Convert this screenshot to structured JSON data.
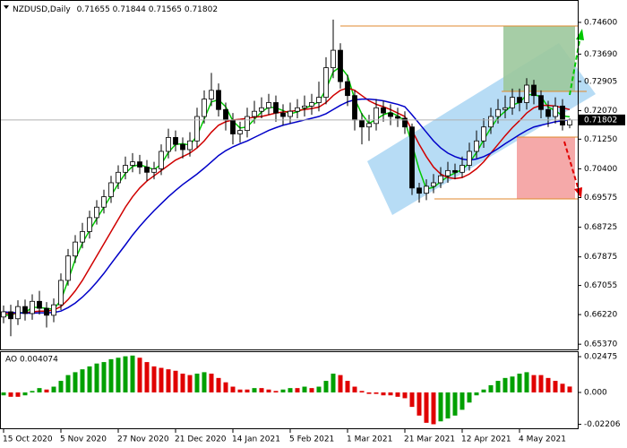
{
  "chart_data": [
    {
      "type": "candlestick",
      "title": "NZDUSD,Daily",
      "color": "#000000",
      "bull_fill": "#ffffff",
      "categories": [
        "15 Oct 2020",
        null,
        null,
        null,
        null,
        null,
        null,
        null,
        "5 Nov 2020",
        null,
        null,
        null,
        null,
        null,
        null,
        null,
        "27 Nov 2020",
        null,
        null,
        null,
        null,
        null,
        null,
        null,
        "21 Dec 2020",
        null,
        null,
        null,
        null,
        null,
        null,
        null,
        "14 Jan 2021",
        null,
        null,
        null,
        null,
        null,
        null,
        null,
        "5 Feb 2021",
        null,
        null,
        null,
        null,
        null,
        null,
        null,
        "1 Mar 2021",
        null,
        null,
        null,
        null,
        null,
        null,
        null,
        "21 Mar 2021",
        null,
        null,
        null,
        null,
        null,
        null,
        null,
        "12 Apr 2021",
        null,
        null,
        null,
        null,
        null,
        null,
        null,
        "4 May 2021",
        null,
        null,
        null,
        null,
        null,
        null,
        null
      ],
      "open": [
        0.6615,
        0.663,
        0.661,
        0.6645,
        0.6625,
        0.666,
        0.664,
        0.662,
        0.665,
        0.672,
        0.679,
        0.683,
        0.686,
        0.69,
        0.693,
        0.696,
        0.7,
        0.703,
        0.705,
        0.706,
        0.7045,
        0.703,
        0.704,
        0.709,
        0.713,
        0.711,
        0.7095,
        0.712,
        0.719,
        0.724,
        0.7265,
        0.721,
        0.718,
        0.714,
        0.715,
        0.719,
        0.7205,
        0.7215,
        0.723,
        0.72,
        0.719,
        0.7205,
        0.7215,
        0.722,
        0.723,
        0.7245,
        0.733,
        0.738,
        0.729,
        0.725,
        0.718,
        0.716,
        0.717,
        0.7215,
        0.72,
        0.719,
        0.7185,
        0.716,
        0.6985,
        0.697,
        0.699,
        0.7,
        0.702,
        0.7035,
        0.703,
        0.705,
        0.709,
        0.712,
        0.716,
        0.719,
        0.721,
        0.7215,
        0.7245,
        0.723,
        0.728,
        0.725,
        0.721,
        0.719,
        0.722,
        0.71655
      ],
      "high": [
        0.6648,
        0.665,
        0.6663,
        0.6665,
        0.668,
        0.669,
        0.6658,
        0.6668,
        0.674,
        0.681,
        0.685,
        0.6885,
        0.692,
        0.695,
        0.698,
        0.702,
        0.705,
        0.7075,
        0.7085,
        0.708,
        0.7065,
        0.706,
        0.711,
        0.7155,
        0.715,
        0.713,
        0.7145,
        0.7215,
        0.7265,
        0.7315,
        0.7285,
        0.723,
        0.72,
        0.7175,
        0.7215,
        0.7235,
        0.7245,
        0.7255,
        0.725,
        0.7225,
        0.723,
        0.724,
        0.725,
        0.7255,
        0.729,
        0.736,
        0.7468,
        0.74,
        0.731,
        0.7265,
        0.72,
        0.7195,
        0.724,
        0.7235,
        0.7225,
        0.7215,
        0.7205,
        0.717,
        0.7,
        0.701,
        0.7025,
        0.7045,
        0.706,
        0.7055,
        0.7075,
        0.7115,
        0.715,
        0.7185,
        0.7215,
        0.724,
        0.725,
        0.727,
        0.727,
        0.73,
        0.7295,
        0.7265,
        0.7235,
        0.7245,
        0.724,
        0.71844
      ],
      "low": [
        0.6597,
        0.656,
        0.6592,
        0.6605,
        0.6607,
        0.6622,
        0.6585,
        0.66,
        0.6635,
        0.6705,
        0.677,
        0.6812,
        0.684,
        0.688,
        0.6912,
        0.6942,
        0.6982,
        0.701,
        0.703,
        0.7025,
        0.7005,
        0.701,
        0.7022,
        0.707,
        0.709,
        0.707,
        0.7075,
        0.71,
        0.717,
        0.722,
        0.719,
        0.715,
        0.711,
        0.7115,
        0.713,
        0.717,
        0.7185,
        0.7195,
        0.7175,
        0.7165,
        0.717,
        0.7185,
        0.719,
        0.7195,
        0.7205,
        0.7225,
        0.73,
        0.727,
        0.722,
        0.715,
        0.711,
        0.712,
        0.715,
        0.7175,
        0.7165,
        0.716,
        0.714,
        0.6965,
        0.6943,
        0.695,
        0.697,
        0.6985,
        0.7,
        0.701,
        0.7015,
        0.7035,
        0.707,
        0.71,
        0.714,
        0.717,
        0.7185,
        0.7195,
        0.7205,
        0.721,
        0.7225,
        0.7185,
        0.716,
        0.717,
        0.715,
        0.71565
      ],
      "close": [
        0.663,
        0.661,
        0.6645,
        0.6625,
        0.666,
        0.664,
        0.662,
        0.665,
        0.672,
        0.679,
        0.683,
        0.686,
        0.69,
        0.693,
        0.696,
        0.7,
        0.703,
        0.705,
        0.706,
        0.7045,
        0.703,
        0.704,
        0.709,
        0.713,
        0.711,
        0.7095,
        0.712,
        0.719,
        0.724,
        0.7265,
        0.721,
        0.718,
        0.714,
        0.715,
        0.719,
        0.7205,
        0.7215,
        0.723,
        0.72,
        0.719,
        0.7205,
        0.7215,
        0.722,
        0.723,
        0.7245,
        0.733,
        0.738,
        0.729,
        0.725,
        0.718,
        0.716,
        0.717,
        0.7215,
        0.72,
        0.719,
        0.7185,
        0.716,
        0.6985,
        0.697,
        0.699,
        0.7,
        0.702,
        0.7035,
        0.703,
        0.705,
        0.709,
        0.712,
        0.716,
        0.719,
        0.721,
        0.7215,
        0.7245,
        0.723,
        0.728,
        0.725,
        0.721,
        0.719,
        0.722,
        0.71655,
        0.71802
      ],
      "series": [
        {
          "color": "#00c800",
          "values": [
            0.662,
            0.662,
            0.6628,
            0.6627,
            0.6643,
            0.6642,
            0.664,
            0.6637,
            0.6663,
            0.672,
            0.678,
            0.6827,
            0.6863,
            0.6897,
            0.693,
            0.6963,
            0.6997,
            0.7027,
            0.7047,
            0.7052,
            0.7045,
            0.7038,
            0.7053,
            0.7087,
            0.711,
            0.7112,
            0.7108,
            0.7135,
            0.7183,
            0.7232,
            0.7238,
            0.7218,
            0.7177,
            0.7157,
            0.716,
            0.7182,
            0.7203,
            0.7217,
            0.7215,
            0.7207,
            0.7198,
            0.7203,
            0.7213,
            0.7222,
            0.7232,
            0.7268,
            0.7318,
            0.7333,
            0.7307,
            0.724,
            0.7197,
            0.717,
            0.7182,
            0.7195,
            0.7202,
            0.7192,
            0.7178,
            0.711,
            0.7038,
            0.6982,
            0.6987,
            0.7003,
            0.7018,
            0.7028,
            0.7038,
            0.7057,
            0.7087,
            0.7123,
            0.7157,
            0.7187,
            0.7205,
            0.7223,
            0.723,
            0.7252,
            0.7253,
            0.7247,
            0.7217,
            0.7207,
            0.7192,
            0.7189
          ]
        },
        {
          "color": "#d00000",
          "values": [
            0.6625,
            0.6624,
            0.6626,
            0.6627,
            0.663,
            0.6632,
            0.6632,
            0.6635,
            0.6645,
            0.6665,
            0.669,
            0.672,
            0.6755,
            0.679,
            0.6825,
            0.686,
            0.6895,
            0.693,
            0.696,
            0.6985,
            0.7005,
            0.702,
            0.7035,
            0.705,
            0.7065,
            0.7075,
            0.7085,
            0.71,
            0.712,
            0.7145,
            0.7165,
            0.7175,
            0.718,
            0.7182,
            0.7185,
            0.7188,
            0.719,
            0.7195,
            0.72,
            0.7203,
            0.7205,
            0.7207,
            0.721,
            0.7213,
            0.7217,
            0.723,
            0.725,
            0.7265,
            0.7272,
            0.7265,
            0.725,
            0.7235,
            0.7225,
            0.7218,
            0.721,
            0.72,
            0.719,
            0.715,
            0.711,
            0.7075,
            0.7045,
            0.7025,
            0.7015,
            0.7012,
            0.7015,
            0.7025,
            0.704,
            0.706,
            0.7085,
            0.711,
            0.7135,
            0.7158,
            0.7178,
            0.72,
            0.7215,
            0.7222,
            0.7222,
            0.722,
            0.7215,
            0.721
          ]
        },
        {
          "color": "#0000c8",
          "values": [
            0.663,
            0.6628,
            0.6627,
            0.6626,
            0.6626,
            0.6627,
            0.6627,
            0.6628,
            0.6632,
            0.6642,
            0.6655,
            0.6672,
            0.6692,
            0.6715,
            0.674,
            0.6768,
            0.6795,
            0.6822,
            0.685,
            0.6875,
            0.6898,
            0.692,
            0.694,
            0.696,
            0.6978,
            0.6995,
            0.701,
            0.7025,
            0.7042,
            0.706,
            0.7078,
            0.7092,
            0.7103,
            0.7112,
            0.712,
            0.713,
            0.714,
            0.715,
            0.7158,
            0.7165,
            0.717,
            0.7175,
            0.718,
            0.7185,
            0.719,
            0.7198,
            0.721,
            0.7222,
            0.7232,
            0.7238,
            0.724,
            0.724,
            0.7238,
            0.7235,
            0.723,
            0.7225,
            0.7218,
            0.7195,
            0.717,
            0.7145,
            0.712,
            0.71,
            0.7085,
            0.7075,
            0.7068,
            0.7065,
            0.7068,
            0.7075,
            0.7085,
            0.7098,
            0.7112,
            0.7125,
            0.7138,
            0.715,
            0.716,
            0.7165,
            0.717,
            0.7175,
            0.7178,
            0.718
          ]
        }
      ],
      "ylim": [
        0.6522,
        0.7519
      ],
      "yticks": [
        {
          "value": 0.746,
          "label": "0.74600"
        },
        {
          "value": 0.7369,
          "label": "0.73690"
        },
        {
          "value": 0.72905,
          "label": "0.72905"
        },
        {
          "value": 0.7207,
          "label": "0.72070"
        },
        {
          "value": 0.7125,
          "label": "0.71250"
        },
        {
          "value": 0.704,
          "label": "0.70400"
        },
        {
          "value": 0.69575,
          "label": "0.69575"
        },
        {
          "value": 0.68725,
          "label": "0.68725"
        },
        {
          "value": 0.67875,
          "label": "0.67875"
        },
        {
          "value": 0.67055,
          "label": "0.67055"
        },
        {
          "value": 0.6622,
          "label": "0.66220"
        },
        {
          "value": 0.6537,
          "label": "0.65370"
        }
      ]
    },
    {
      "type": "bar",
      "title": "AO 0.004074",
      "up_color": "#00a000",
      "down_color": "#e00000",
      "values": [
        -0.002,
        -0.003,
        -0.003,
        -0.002,
        0.001,
        0.003,
        0.002,
        0.004,
        0.008,
        0.012,
        0.014,
        0.016,
        0.018,
        0.02,
        0.021,
        0.023,
        0.024,
        0.025,
        0.0255,
        0.024,
        0.021,
        0.018,
        0.017,
        0.016,
        0.015,
        0.013,
        0.012,
        0.013,
        0.014,
        0.013,
        0.01,
        0.007,
        0.004,
        0.002,
        0.002,
        0.003,
        0.003,
        0.002,
        0.001,
        0.002,
        0.003,
        0.003,
        0.004,
        0.003,
        0.004,
        0.008,
        0.013,
        0.012,
        0.008,
        0.004,
        0.001,
        -0.001,
        -0.001,
        -0.002,
        -0.002,
        -0.003,
        -0.004,
        -0.01,
        -0.016,
        -0.021,
        -0.022,
        -0.02,
        -0.018,
        -0.016,
        -0.012,
        -0.007,
        -0.002,
        0.002,
        0.005,
        0.008,
        0.01,
        0.011,
        0.013,
        0.014,
        0.012,
        0.012,
        0.01,
        0.008,
        0.006,
        0.004074
      ],
      "ylim": [
        -0.0248,
        0.0285
      ],
      "yticks": [
        {
          "value": 0.02475,
          "label": "0.02475"
        },
        {
          "value": 0,
          "label": "0.000"
        },
        {
          "value": -0.02206,
          "label": "-0.02206"
        }
      ]
    }
  ]
}
